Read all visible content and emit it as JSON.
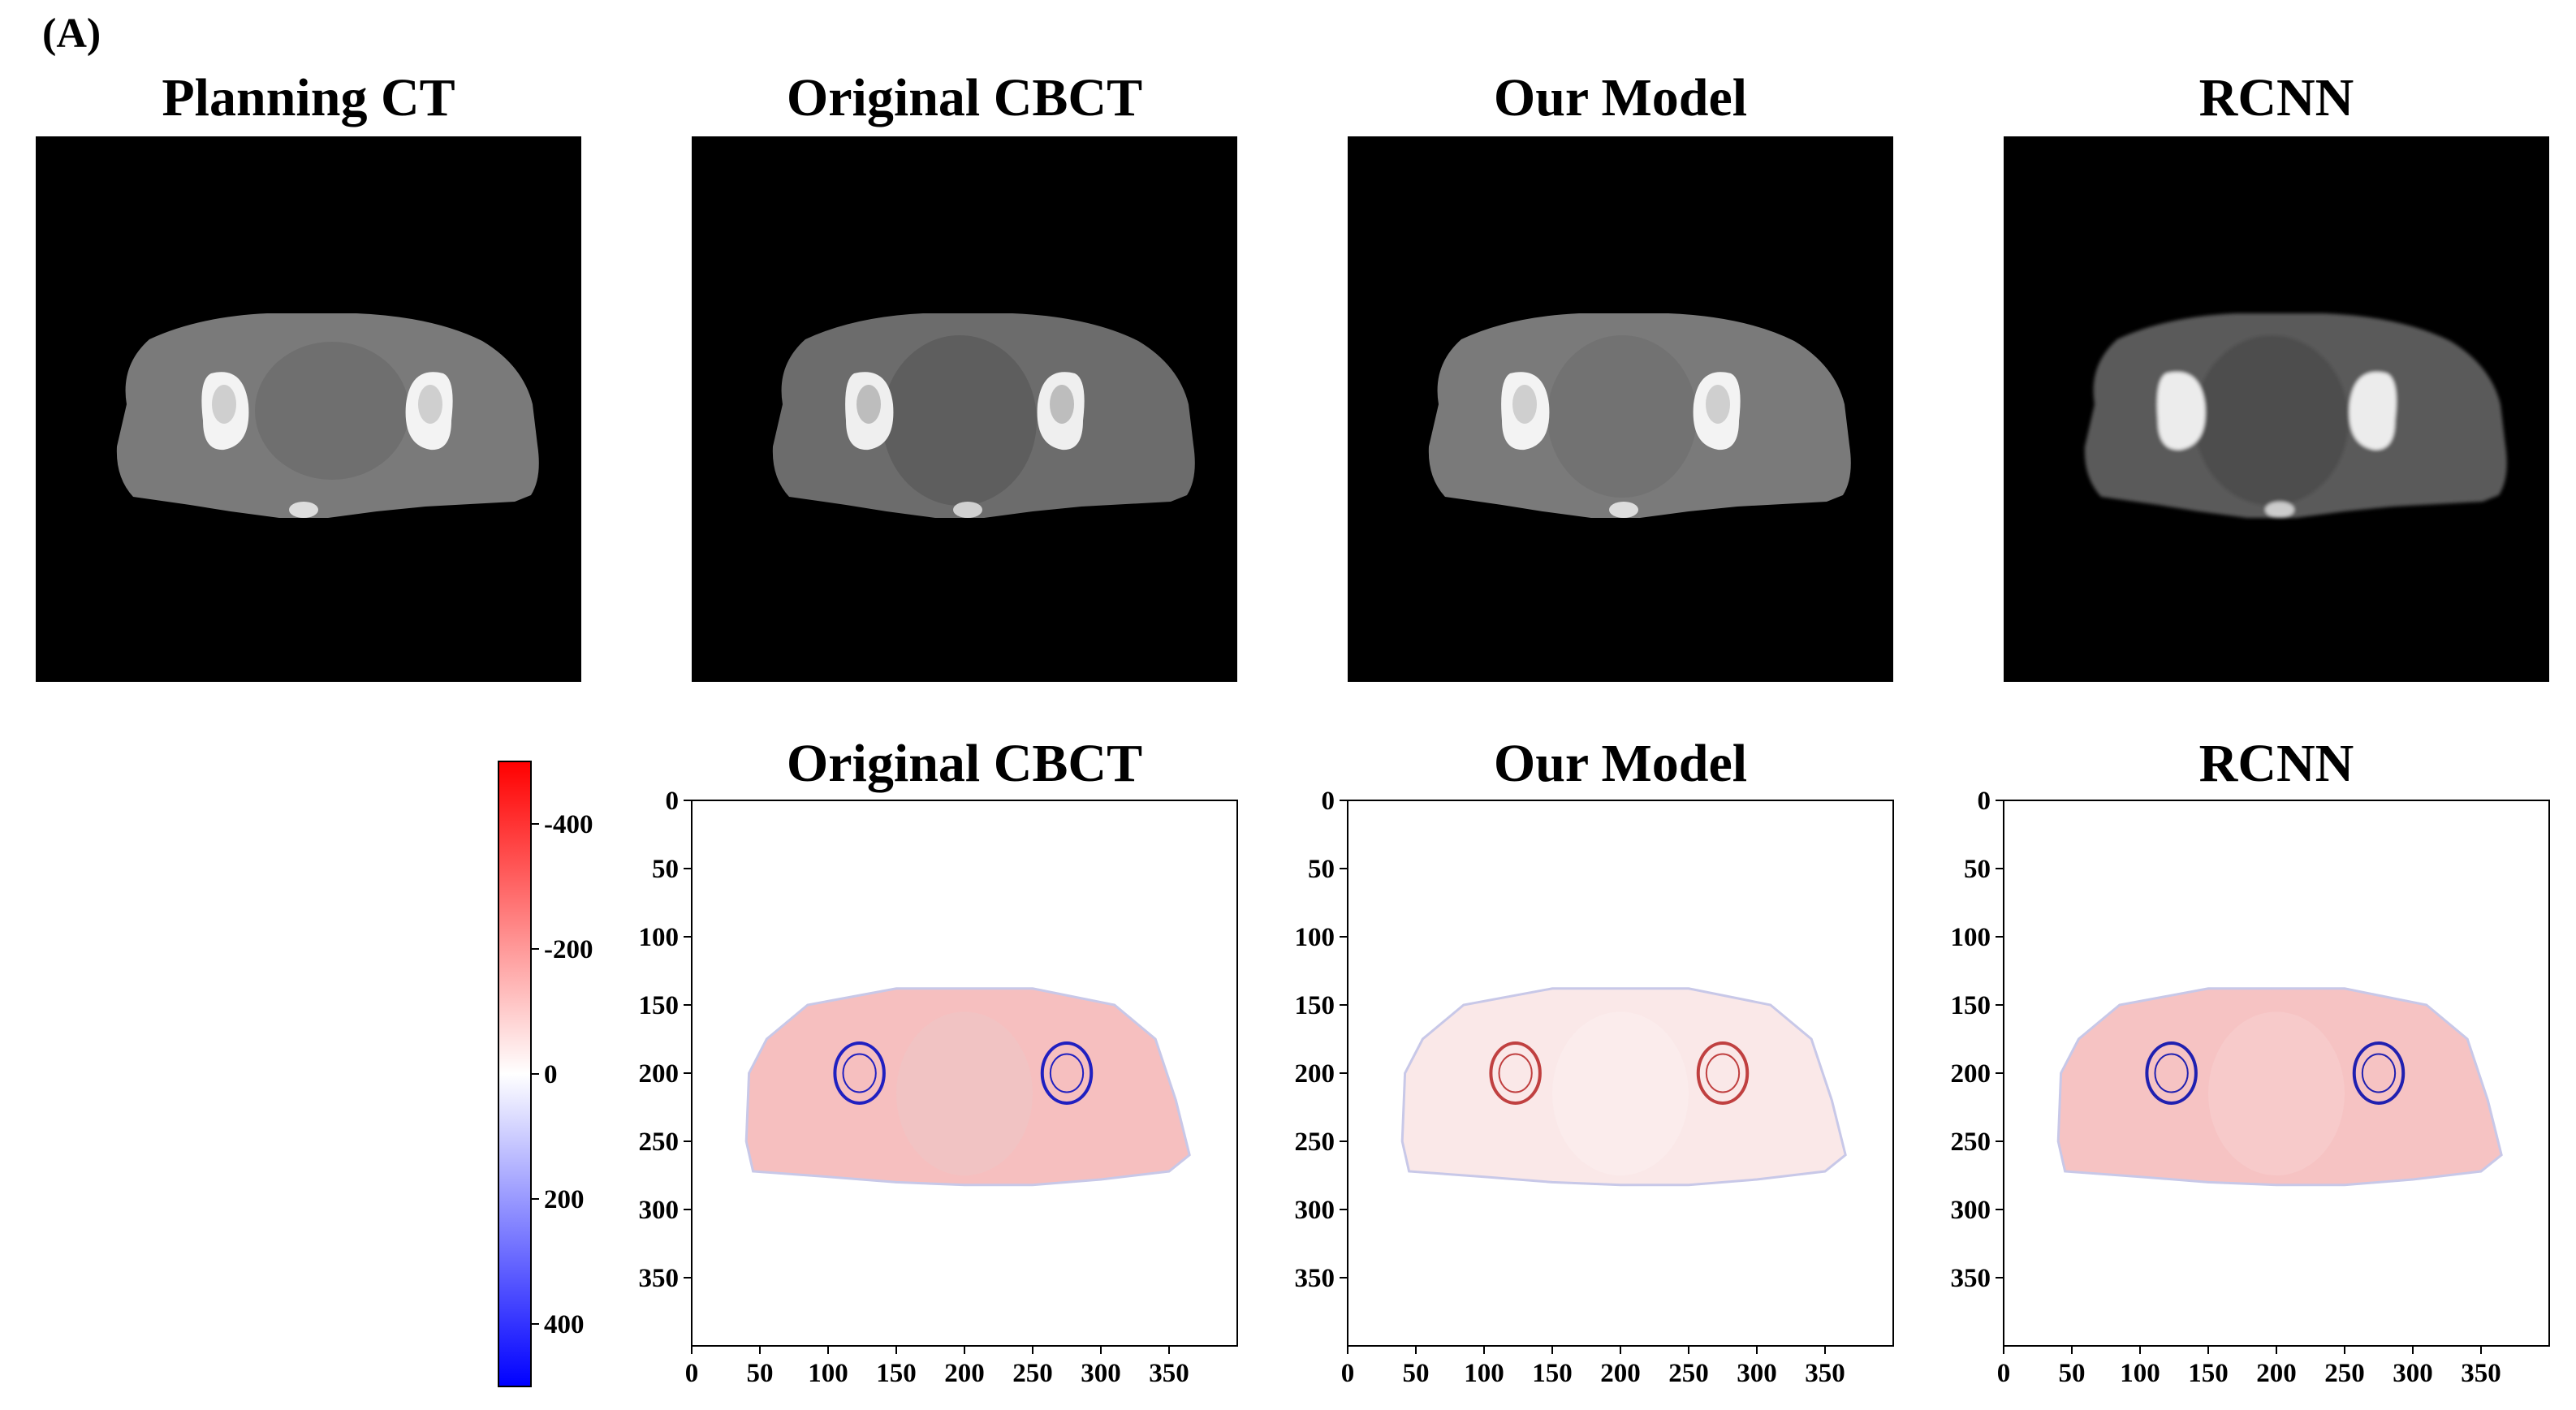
{
  "figure": {
    "panel_label": "(A)",
    "top_titles": [
      "Planning CT",
      "Original CBCT",
      "Our Model",
      "RCNN"
    ],
    "bottom_titles": [
      "Original CBCT",
      "Our Model",
      "RCNN"
    ]
  },
  "colors": {
    "ct_background": "#000000",
    "tissue_gray": "#7c7c7c",
    "bone_white": "#f2f2f2",
    "diff_positive": "#ff0000",
    "diff_negative": "#0000ff",
    "diff_zero": "#ffffff"
  },
  "chart_data": [
    {
      "type": "heatmap",
      "title": "Original CBCT",
      "xlim": [
        0,
        400
      ],
      "ylim": [
        400,
        0
      ],
      "xticks": [
        0,
        50,
        100,
        150,
        200,
        250,
        300,
        350
      ],
      "yticks": [
        0,
        50,
        100,
        150,
        200,
        250,
        300,
        350
      ]
    },
    {
      "type": "heatmap",
      "title": "Our Model",
      "xlim": [
        0,
        400
      ],
      "ylim": [
        400,
        0
      ],
      "xticks": [
        0,
        50,
        100,
        150,
        200,
        250,
        300,
        350
      ],
      "yticks": [
        0,
        50,
        100,
        150,
        200,
        250,
        300,
        350
      ]
    },
    {
      "type": "heatmap",
      "title": "RCNN",
      "xlim": [
        0,
        400
      ],
      "ylim": [
        400,
        0
      ],
      "xticks": [
        0,
        50,
        100,
        150,
        200,
        250,
        300,
        350
      ],
      "yticks": [
        0,
        50,
        100,
        150,
        200,
        250,
        300,
        350
      ]
    }
  ],
  "colorbar": {
    "range": [
      -500,
      500
    ],
    "ticks": [
      -400,
      -200,
      0,
      200,
      400
    ],
    "tick_labels": [
      "-400",
      "-200",
      "0",
      "200",
      "400"
    ]
  }
}
